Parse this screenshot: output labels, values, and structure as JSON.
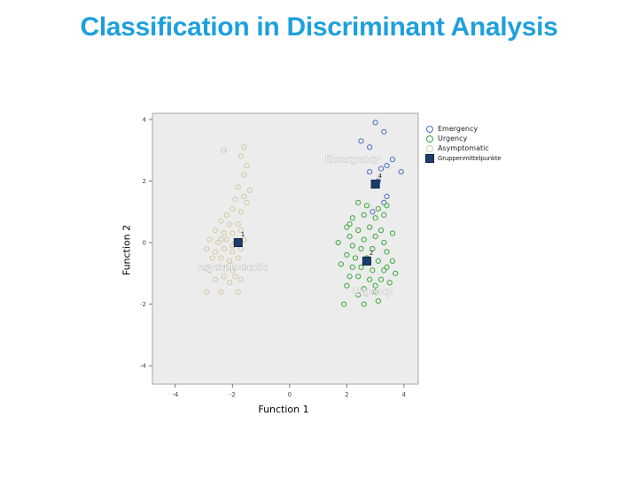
{
  "slide": {
    "title": "Classification in Discriminant Analysis"
  },
  "chart_data": {
    "type": "scatter",
    "title": "",
    "xlabel": "Function 1",
    "ylabel": "Function 2",
    "xlim": [
      -4.8,
      4.5
    ],
    "ylim": [
      -4.6,
      4.2
    ],
    "x_ticks": [
      "-4",
      "-2",
      "0",
      "2",
      "4"
    ],
    "y_ticks": [
      "4",
      "2",
      "0",
      "-2",
      "-4"
    ],
    "grid": false,
    "legend_position": "right",
    "background": "#ececec",
    "series": [
      {
        "name": "Emergency",
        "color": "#4a6fc0",
        "points": [
          [
            3.0,
            3.9
          ],
          [
            3.3,
            3.6
          ],
          [
            2.5,
            3.3
          ],
          [
            2.8,
            3.1
          ],
          [
            3.6,
            2.7
          ],
          [
            3.4,
            2.5
          ],
          [
            3.2,
            2.4
          ],
          [
            2.8,
            2.3
          ],
          [
            3.9,
            2.3
          ],
          [
            3.1,
            2.0
          ],
          [
            3.4,
            1.5
          ],
          [
            3.3,
            1.3
          ],
          [
            2.9,
            1.0
          ]
        ]
      },
      {
        "name": "Urgency",
        "color": "#3aa83a",
        "points": [
          [
            2.4,
            1.3
          ],
          [
            2.7,
            1.2
          ],
          [
            3.1,
            1.1
          ],
          [
            3.4,
            1.2
          ],
          [
            2.2,
            0.8
          ],
          [
            2.6,
            0.9
          ],
          [
            3.0,
            0.8
          ],
          [
            3.3,
            0.9
          ],
          [
            2.0,
            0.5
          ],
          [
            2.4,
            0.4
          ],
          [
            2.8,
            0.5
          ],
          [
            3.2,
            0.4
          ],
          [
            2.1,
            0.2
          ],
          [
            2.6,
            0.1
          ],
          [
            3.0,
            0.2
          ],
          [
            3.3,
            0.0
          ],
          [
            3.6,
            0.3
          ],
          [
            1.7,
            0.0
          ],
          [
            2.2,
            -0.1
          ],
          [
            2.5,
            -0.2
          ],
          [
            2.9,
            -0.2
          ],
          [
            3.4,
            -0.3
          ],
          [
            2.0,
            -0.4
          ],
          [
            2.3,
            -0.5
          ],
          [
            2.7,
            -0.5
          ],
          [
            3.1,
            -0.6
          ],
          [
            3.6,
            -0.6
          ],
          [
            1.8,
            -0.7
          ],
          [
            2.2,
            -0.8
          ],
          [
            2.5,
            -0.8
          ],
          [
            2.9,
            -0.9
          ],
          [
            3.3,
            -0.9
          ],
          [
            3.7,
            -1.0
          ],
          [
            2.1,
            -1.1
          ],
          [
            2.4,
            -1.1
          ],
          [
            2.8,
            -1.2
          ],
          [
            3.2,
            -1.2
          ],
          [
            3.5,
            -1.3
          ],
          [
            2.0,
            -1.4
          ],
          [
            2.6,
            -1.5
          ],
          [
            3.0,
            -1.6
          ],
          [
            2.4,
            -1.7
          ],
          [
            1.9,
            -2.0
          ],
          [
            2.6,
            -2.0
          ],
          [
            3.1,
            -1.9
          ],
          [
            3.4,
            -0.8
          ],
          [
            3.0,
            -1.4
          ],
          [
            2.1,
            0.6
          ]
        ]
      },
      {
        "name": "Asymptomatic",
        "color": "#d2c8a0",
        "points": [
          [
            -2.3,
            3.0
          ],
          [
            -1.7,
            2.8
          ],
          [
            -1.6,
            3.1
          ],
          [
            -1.5,
            2.5
          ],
          [
            -1.6,
            2.2
          ],
          [
            -1.8,
            1.8
          ],
          [
            -1.4,
            1.7
          ],
          [
            -1.6,
            1.5
          ],
          [
            -1.9,
            1.4
          ],
          [
            -1.5,
            1.3
          ],
          [
            -2.0,
            1.1
          ],
          [
            -1.7,
            1.0
          ],
          [
            -2.4,
            0.7
          ],
          [
            -2.1,
            0.6
          ],
          [
            -1.8,
            0.6
          ],
          [
            -2.6,
            0.4
          ],
          [
            -2.3,
            0.3
          ],
          [
            -2.0,
            0.3
          ],
          [
            -1.7,
            0.4
          ],
          [
            -2.8,
            0.1
          ],
          [
            -2.5,
            0.0
          ],
          [
            -2.2,
            0.1
          ],
          [
            -1.9,
            0.0
          ],
          [
            -1.6,
            0.1
          ],
          [
            -2.9,
            -0.2
          ],
          [
            -2.6,
            -0.3
          ],
          [
            -2.3,
            -0.2
          ],
          [
            -2.0,
            -0.3
          ],
          [
            -1.7,
            -0.2
          ],
          [
            -2.7,
            -0.5
          ],
          [
            -2.4,
            -0.5
          ],
          [
            -2.1,
            -0.6
          ],
          [
            -1.8,
            -0.5
          ],
          [
            -2.5,
            -0.8
          ],
          [
            -2.2,
            -0.8
          ],
          [
            -2.0,
            -0.9
          ],
          [
            -1.6,
            -0.8
          ],
          [
            -2.8,
            -0.9
          ],
          [
            -2.3,
            -1.1
          ],
          [
            -1.9,
            -1.1
          ],
          [
            -2.6,
            -1.2
          ],
          [
            -2.1,
            -1.3
          ],
          [
            -1.7,
            -1.2
          ],
          [
            -2.9,
            -1.6
          ],
          [
            -2.4,
            -1.6
          ],
          [
            -1.8,
            -1.6
          ],
          [
            -2.2,
            0.9
          ],
          [
            -2.0,
            -0.1
          ],
          [
            -2.4,
            0.1
          ]
        ]
      },
      {
        "name": "Gruppenmittelpunkte",
        "color": "#1c3d6b",
        "points": [
          [
            3.0,
            1.9
          ],
          [
            -1.8,
            0.0
          ],
          [
            2.7,
            -0.6
          ]
        ],
        "labels": [
          "4",
          "1",
          "2"
        ]
      }
    ],
    "annotations": [
      {
        "text": "Emergency",
        "x": 2.2,
        "y": 2.6
      },
      {
        "text": "Asymptomatic",
        "x": -2.0,
        "y": -0.9
      },
      {
        "text": "Urgency",
        "x": 2.9,
        "y": -1.7
      }
    ]
  }
}
